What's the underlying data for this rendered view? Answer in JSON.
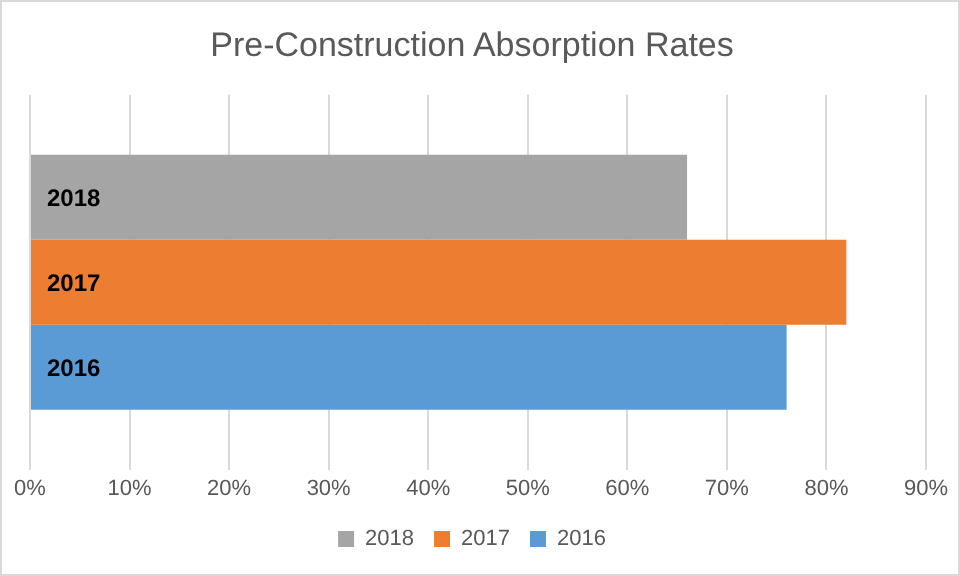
{
  "chart_data": {
    "type": "bar",
    "orientation": "horizontal",
    "title": "Pre-Construction Absorption Rates",
    "categories": [
      null
    ],
    "series": [
      {
        "name": "2018",
        "color": "#a5a5a5",
        "values": [
          66
        ]
      },
      {
        "name": "2017",
        "color": "#ed7d31",
        "values": [
          82
        ]
      },
      {
        "name": "2016",
        "color": "#5b9bd5",
        "values": [
          76
        ]
      }
    ],
    "xlim": [
      0,
      90
    ],
    "xticks": [
      {
        "value": 0,
        "label": "0%"
      },
      {
        "value": 10,
        "label": "10%"
      },
      {
        "value": 20,
        "label": "20%"
      },
      {
        "value": 30,
        "label": "30%"
      },
      {
        "value": 40,
        "label": "40%"
      },
      {
        "value": 50,
        "label": "50%"
      },
      {
        "value": 60,
        "label": "60%"
      },
      {
        "value": 70,
        "label": "70%"
      },
      {
        "value": 80,
        "label": "80%"
      },
      {
        "value": 90,
        "label": "90%"
      }
    ],
    "grid": "x",
    "legend": "bottom"
  }
}
